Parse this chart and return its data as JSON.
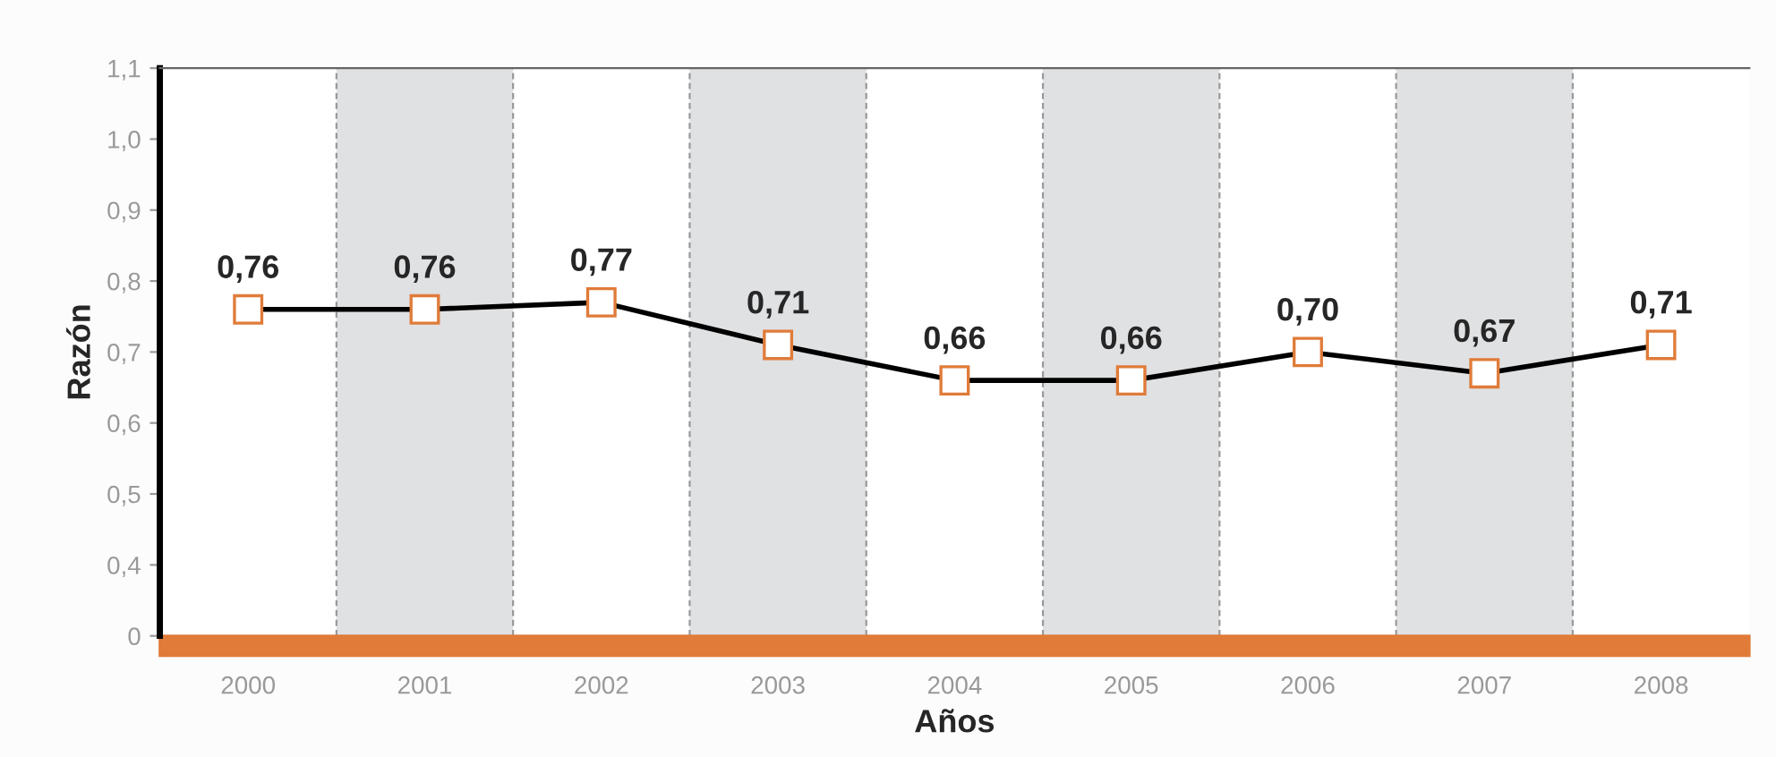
{
  "chart_data": {
    "type": "line",
    "xlabel": "Años",
    "ylabel": "Razón",
    "categories": [
      "2000",
      "2001",
      "2002",
      "2003",
      "2004",
      "2005",
      "2006",
      "2007",
      "2008"
    ],
    "series": [
      {
        "color": "#000000",
        "values": [
          0.76,
          0.76,
          0.77,
          0.71,
          0.66,
          0.66,
          0.7,
          0.67,
          0.71
        ],
        "value_labels": [
          "0,76",
          "0,76",
          "0,77",
          "0,71",
          "0,66",
          "0,66",
          "0,70",
          "0,67",
          "0,71"
        ]
      }
    ],
    "marker": "square",
    "line_style": "solid",
    "ylim": [
      0.3,
      1.1
    ],
    "yticks": [
      {
        "value": 0.3,
        "label": "0"
      },
      {
        "value": 0.4,
        "label": "0,4"
      },
      {
        "value": 0.5,
        "label": "0,5"
      },
      {
        "value": 0.6,
        "label": "0,6"
      },
      {
        "value": 0.7,
        "label": "0,7"
      },
      {
        "value": 0.8,
        "label": "0,8"
      },
      {
        "value": 0.9,
        "label": "0,9"
      },
      {
        "value": 1.0,
        "label": "1,0"
      },
      {
        "value": 1.1,
        "label": "1,1"
      }
    ],
    "bands": [
      {
        "axis": "x",
        "from": "2001",
        "to": "2001",
        "color": "#e0e1e3"
      },
      {
        "axis": "x",
        "from": "2003",
        "to": "2003",
        "color": "#e0e1e3"
      },
      {
        "axis": "x",
        "from": "2005",
        "to": "2005",
        "color": "#e0e1e3"
      },
      {
        "axis": "x",
        "from": "2007",
        "to": "2007",
        "color": "#e0e1e3"
      }
    ],
    "grid": "x",
    "legend": false
  }
}
